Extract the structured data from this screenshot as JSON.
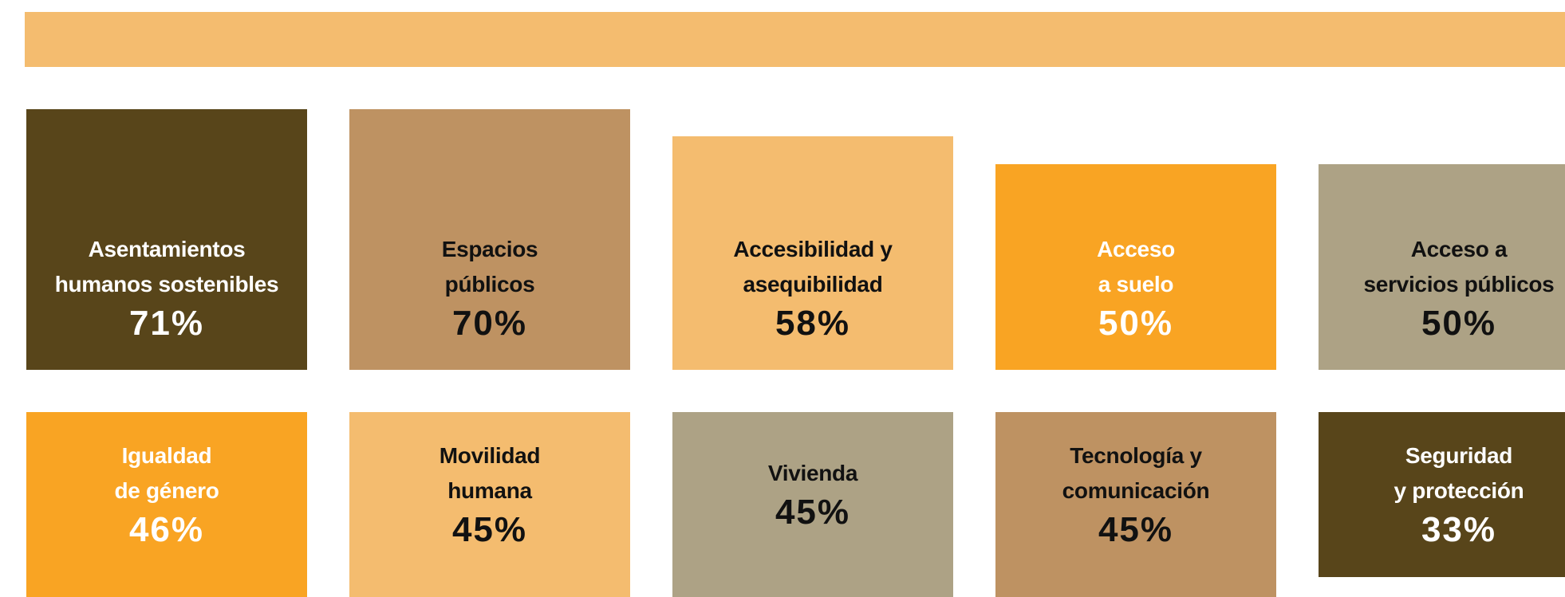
{
  "tiles": [
    {
      "label": [
        "Asentamientos",
        "humanos sostenibles"
      ],
      "value": "71%"
    },
    {
      "label": [
        "Espacios",
        "públicos"
      ],
      "value": "70%"
    },
    {
      "label": [
        "Accesibilidad y",
        "asequibilidad"
      ],
      "value": "58%"
    },
    {
      "label": [
        "Acceso",
        "a suelo"
      ],
      "value": "50%"
    },
    {
      "label": [
        "Acceso a",
        "servicios públicos"
      ],
      "value": "50%"
    },
    {
      "label": [
        "Igualdad",
        "de género"
      ],
      "value": "46%"
    },
    {
      "label": [
        "Movilidad",
        "humana"
      ],
      "value": "45%"
    },
    {
      "label": [
        "Vivienda"
      ],
      "value": "45%"
    },
    {
      "label": [
        "Tecnología y",
        "comunicación"
      ],
      "value": "45%"
    },
    {
      "label": [
        "Seguridad",
        "y protección"
      ],
      "value": "33%"
    }
  ]
}
